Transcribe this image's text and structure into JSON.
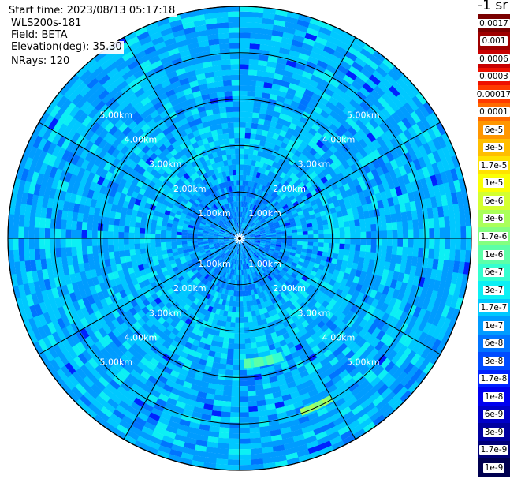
{
  "header": {
    "start_time": "Start time: 2023/08/13 05:17:18",
    "instrument": "WLS200s-181",
    "field": "Field: BETA",
    "elevation": "Elevation(deg): 35.30",
    "nrays": "NRays: 120"
  },
  "colorbar": {
    "units": "-1 sr",
    "levels": [
      "0.0017",
      "0.001",
      "0.0006",
      "0.0003",
      "0.00017",
      "0.0001",
      "6e-5",
      "3e-5",
      "1.7e-5",
      "1e-5",
      "6e-6",
      "3e-6",
      "1.7e-6",
      "1e-6",
      "6e-7",
      "3e-7",
      "1.7e-7",
      "1e-7",
      "6e-8",
      "3e-8",
      "1.7e-8",
      "1e-8",
      "6e-9",
      "3e-9",
      "1.7e-9",
      "1e-9"
    ],
    "colors": [
      "#7a0000",
      "#9e0000",
      "#c80000",
      "#ee1000",
      "#ff3a00",
      "#ff6a00",
      "#ff9600",
      "#ffbe00",
      "#ffe200",
      "#faff05",
      "#d4ff30",
      "#aaff5a",
      "#84ff80",
      "#5cffa8",
      "#34ffd0",
      "#0cf0f4",
      "#00c8ff",
      "#009cff",
      "#0074ff",
      "#004cff",
      "#0022ff",
      "#0000f0",
      "#0000c8",
      "#0000a0",
      "#000078",
      "#000050"
    ]
  },
  "chart_data": {
    "type": "heatmap",
    "projection": "polar-ppi",
    "field": "BETA",
    "elevation_deg": 35.3,
    "n_rays": 120,
    "range_rings_km": [
      1,
      2,
      3,
      4,
      5
    ],
    "range_labels": [
      "1.00km",
      "2.00km",
      "3.00km",
      "4.00km",
      "5.00km"
    ],
    "max_range_km": 5.0,
    "spokes_deg": [
      0,
      30,
      60,
      90,
      120,
      150,
      180,
      210,
      240,
      270,
      300,
      330
    ],
    "background_value_range": [
      6e-08,
      3e-07
    ],
    "notable_features": [
      {
        "azimuth_deg_range": [
          160,
          178
        ],
        "range_km": [
          2.6,
          2.8
        ],
        "value_approx": 1e-06
      },
      {
        "azimuth_deg_range": [
          150,
          160
        ],
        "range_km": [
          3.9,
          4.05
        ],
        "value_approx": 3e-06
      }
    ]
  }
}
